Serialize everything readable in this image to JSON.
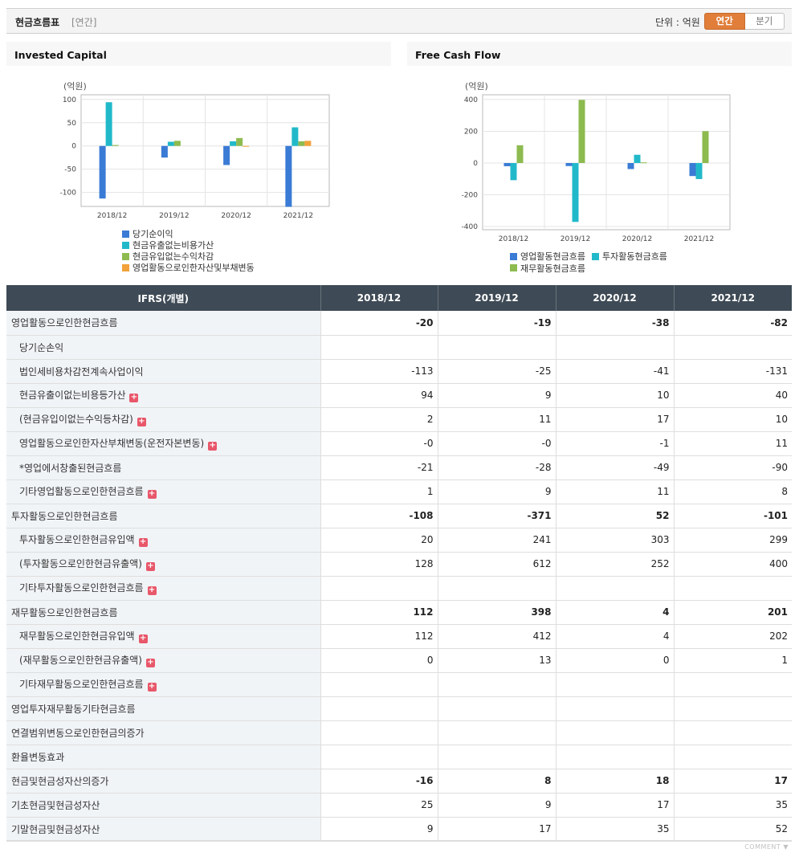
{
  "header": {
    "title": "현금흐름표",
    "period": "[연간]",
    "unit": "단위 : 억원",
    "tabs": [
      {
        "label": "연간",
        "active": true
      },
      {
        "label": "분기",
        "active": false
      }
    ]
  },
  "chart_data": [
    {
      "panel_title": "Invested Capital",
      "type": "bar",
      "unit_label": "(억원)",
      "categories": [
        "2018/12",
        "2019/12",
        "2020/12",
        "2021/12"
      ],
      "yticks": [
        100,
        50,
        0,
        -50,
        -100
      ],
      "ylim": [
        -130,
        110
      ],
      "series": [
        {
          "name": "당기순이익",
          "color": "#3a7bd5",
          "values": [
            -113,
            -25,
            -41,
            -131
          ]
        },
        {
          "name": "현금유출없는비용가산",
          "color": "#21b9c9",
          "values": [
            94,
            9,
            10,
            40
          ]
        },
        {
          "name": "현금유입없는수익차감",
          "color": "#8dbb4f",
          "values": [
            2,
            11,
            17,
            10
          ]
        },
        {
          "name": "영업활동으로인한자산및부채변동",
          "color": "#f2a23a",
          "values": [
            0,
            0,
            -1,
            11
          ]
        }
      ]
    },
    {
      "panel_title": "Free Cash Flow",
      "type": "bar",
      "unit_label": "(억원)",
      "categories": [
        "2018/12",
        "2019/12",
        "2020/12",
        "2021/12"
      ],
      "yticks": [
        400,
        200,
        0,
        -200,
        -400
      ],
      "ylim": [
        -420,
        430
      ],
      "series": [
        {
          "name": "영업활동현금흐름",
          "color": "#3a7bd5",
          "values": [
            -20,
            -19,
            -38,
            -82
          ]
        },
        {
          "name": "투자활동현금흐름",
          "color": "#21b9c9",
          "values": [
            -108,
            -371,
            52,
            -101
          ]
        },
        {
          "name": "재무활동현금흐름",
          "color": "#8dbb4f",
          "values": [
            112,
            398,
            4,
            201
          ]
        }
      ]
    }
  ],
  "table": {
    "headers": [
      "IFRS(개별)",
      "2018/12",
      "2019/12",
      "2020/12",
      "2021/12"
    ],
    "rows": [
      {
        "label": "영업활동으로인한현금흐름",
        "values": [
          "-20",
          "-19",
          "-38",
          "-82"
        ],
        "level": 0,
        "bold": true,
        "plus": false
      },
      {
        "label": "당기순손익",
        "values": [
          "",
          "",
          "",
          ""
        ],
        "level": 1,
        "bold": false,
        "plus": false
      },
      {
        "label": "법인세비용차감전계속사업이익",
        "values": [
          "-113",
          "-25",
          "-41",
          "-131"
        ],
        "level": 1,
        "bold": false,
        "plus": false
      },
      {
        "label": "현금유출이없는비용등가산",
        "values": [
          "94",
          "9",
          "10",
          "40"
        ],
        "level": 1,
        "bold": false,
        "plus": true
      },
      {
        "label": "(현금유입이없는수익등차감)",
        "values": [
          "2",
          "11",
          "17",
          "10"
        ],
        "level": 1,
        "bold": false,
        "plus": true
      },
      {
        "label": "영업활동으로인한자산부채변동(운전자본변동)",
        "values": [
          "-0",
          "-0",
          "-1",
          "11"
        ],
        "level": 1,
        "bold": false,
        "plus": true
      },
      {
        "label": "*영업에서창출된현금흐름",
        "values": [
          "-21",
          "-28",
          "-49",
          "-90"
        ],
        "level": 1,
        "bold": false,
        "plus": false
      },
      {
        "label": "기타영업활동으로인한현금흐름",
        "values": [
          "1",
          "9",
          "11",
          "8"
        ],
        "level": 1,
        "bold": false,
        "plus": true
      },
      {
        "label": "투자활동으로인한현금흐름",
        "values": [
          "-108",
          "-371",
          "52",
          "-101"
        ],
        "level": 0,
        "bold": true,
        "plus": false
      },
      {
        "label": "투자활동으로인한현금유입액",
        "values": [
          "20",
          "241",
          "303",
          "299"
        ],
        "level": 1,
        "bold": false,
        "plus": true
      },
      {
        "label": "(투자활동으로인한현금유출액)",
        "values": [
          "128",
          "612",
          "252",
          "400"
        ],
        "level": 1,
        "bold": false,
        "plus": true
      },
      {
        "label": "기타투자활동으로인한현금흐름",
        "values": [
          "",
          "",
          "",
          ""
        ],
        "level": 1,
        "bold": false,
        "plus": true
      },
      {
        "label": "재무활동으로인한현금흐름",
        "values": [
          "112",
          "398",
          "4",
          "201"
        ],
        "level": 0,
        "bold": true,
        "plus": false
      },
      {
        "label": "재무활동으로인한현금유입액",
        "values": [
          "112",
          "412",
          "4",
          "202"
        ],
        "level": 1,
        "bold": false,
        "plus": true
      },
      {
        "label": "(재무활동으로인한현금유출액)",
        "values": [
          "0",
          "13",
          "0",
          "1"
        ],
        "level": 1,
        "bold": false,
        "plus": true
      },
      {
        "label": "기타재무활동으로인한현금흐름",
        "values": [
          "",
          "",
          "",
          ""
        ],
        "level": 1,
        "bold": false,
        "plus": true
      },
      {
        "label": "영업투자재무활동기타현금흐름",
        "values": [
          "",
          "",
          "",
          ""
        ],
        "level": 0,
        "bold": false,
        "plus": false
      },
      {
        "label": "연결범위변동으로인한현금의증가",
        "values": [
          "",
          "",
          "",
          ""
        ],
        "level": 0,
        "bold": false,
        "plus": false
      },
      {
        "label": "환율변동효과",
        "values": [
          "",
          "",
          "",
          ""
        ],
        "level": 0,
        "bold": false,
        "plus": false
      },
      {
        "label": "현금및현금성자산의증가",
        "values": [
          "-16",
          "8",
          "18",
          "17"
        ],
        "level": 0,
        "bold": true,
        "plus": false
      },
      {
        "label": "기초현금및현금성자산",
        "values": [
          "25",
          "9",
          "17",
          "35"
        ],
        "level": 0,
        "bold": false,
        "plus": false
      },
      {
        "label": "기말현금및현금성자산",
        "values": [
          "9",
          "17",
          "35",
          "52"
        ],
        "level": 0,
        "bold": false,
        "plus": false
      }
    ]
  },
  "footer": {
    "comment_label": "COMMENT ▼"
  }
}
